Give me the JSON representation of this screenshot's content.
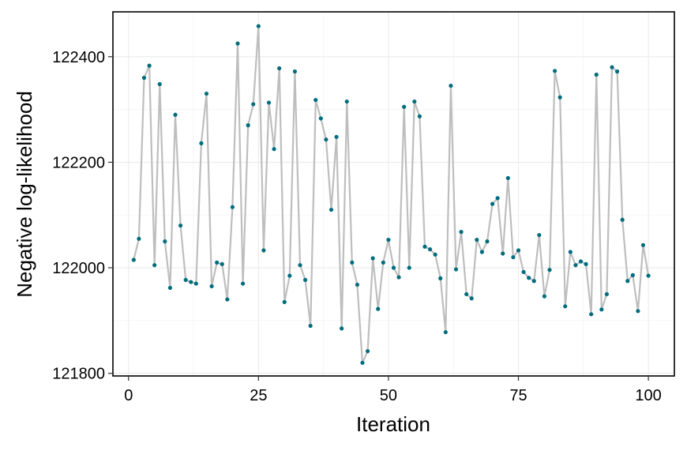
{
  "chart_data": {
    "type": "line",
    "xlabel": "Iteration",
    "ylabel": "Negative log-likelihood",
    "xlim": [
      -3,
      105
    ],
    "ylim": [
      121795,
      122485
    ],
    "x_ticks": [
      0,
      25,
      50,
      75,
      100
    ],
    "y_ticks": [
      121800,
      122000,
      122200,
      122400
    ],
    "x_tick_labels": [
      "0",
      "25",
      "50",
      "75",
      "100"
    ],
    "y_tick_labels": [
      "121800",
      "122000",
      "122200",
      "122400"
    ],
    "grid": true,
    "line_color": "#bebebe",
    "point_color": "#006d7e",
    "series": [
      {
        "x": [
          1,
          2,
          3,
          4,
          5,
          6,
          7,
          8,
          9,
          10,
          11,
          12,
          13,
          14,
          15,
          16,
          17,
          18,
          19,
          20,
          21,
          22,
          23,
          24,
          25,
          26,
          27,
          28,
          29,
          30,
          31,
          32,
          33,
          34,
          35,
          36,
          37,
          38,
          39,
          40,
          41,
          42,
          43,
          44,
          45,
          46,
          47,
          48,
          49,
          50,
          51,
          52,
          53,
          54,
          55,
          56,
          57,
          58,
          59,
          60,
          61,
          62,
          63,
          64,
          65,
          66,
          67,
          68,
          69,
          70,
          71,
          72,
          73,
          74,
          75,
          76,
          77,
          78,
          79,
          80,
          81,
          82,
          83,
          84,
          85,
          86,
          87,
          88,
          89,
          90,
          91,
          92,
          93,
          94,
          95,
          96,
          97,
          98,
          99,
          100
        ],
        "values": [
          122015,
          122055,
          122360,
          122383,
          122005,
          122348,
          122050,
          121962,
          122290,
          122080,
          121977,
          121973,
          121970,
          122236,
          122330,
          121965,
          122010,
          122007,
          121940,
          122115,
          122425,
          121970,
          122270,
          122310,
          122458,
          122033,
          122313,
          122225,
          122378,
          121935,
          121985,
          122372,
          122005,
          121977,
          121890,
          122318,
          122283,
          122243,
          122110,
          122248,
          121885,
          122315,
          122010,
          121968,
          121820,
          121842,
          122018,
          121922,
          122010,
          122053,
          122000,
          121982,
          122305,
          122000,
          122315,
          122287,
          122040,
          122035,
          122025,
          121980,
          121878,
          122345,
          121997,
          122068,
          121950,
          121942,
          122053,
          122030,
          122050,
          122121,
          122132,
          122027,
          122170,
          122020,
          122033,
          121992,
          121981,
          121975,
          122062,
          121946,
          121996,
          122373,
          122323,
          121927,
          122030,
          122005,
          122012,
          122007,
          121912,
          122366,
          121921,
          121950,
          122380,
          122372,
          122091,
          121975,
          121986,
          121918,
          122043,
          121985
        ]
      }
    ]
  }
}
